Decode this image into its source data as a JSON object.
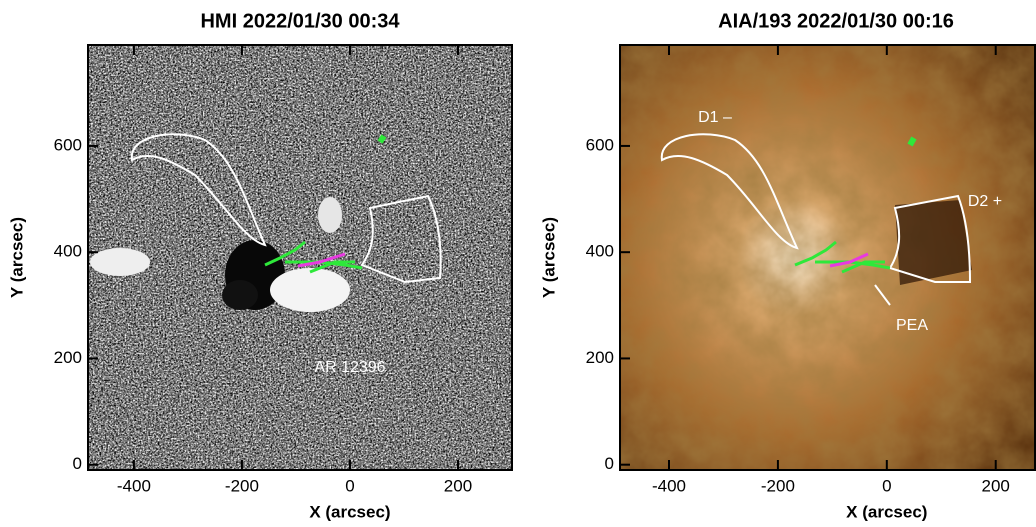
{
  "chart_data": [
    {
      "type": "image",
      "title": "HMI 2022/01/30 00:34",
      "xlabel": "X (arcsec)",
      "ylabel": "Y (arcsec)",
      "xlim": [
        -485,
        300
      ],
      "ylim": [
        -10,
        790
      ],
      "xticks": [
        -400,
        -200,
        0,
        200
      ],
      "yticks": [
        0,
        200,
        400,
        600
      ],
      "annotations": [
        "AR 12396"
      ]
    },
    {
      "type": "image",
      "title": "AIA/193 2022/01/30 00:16",
      "xlabel": "X (arcsec)",
      "ylabel": "Y (arcsec)",
      "xlim": [
        -490,
        285
      ],
      "ylim": [
        -10,
        790
      ],
      "xticks": [
        -400,
        -200,
        0,
        200
      ],
      "yticks": [
        0,
        200,
        400,
        600
      ],
      "annotations": [
        "D1 –",
        "D2 +",
        "PEA"
      ]
    }
  ]
}
